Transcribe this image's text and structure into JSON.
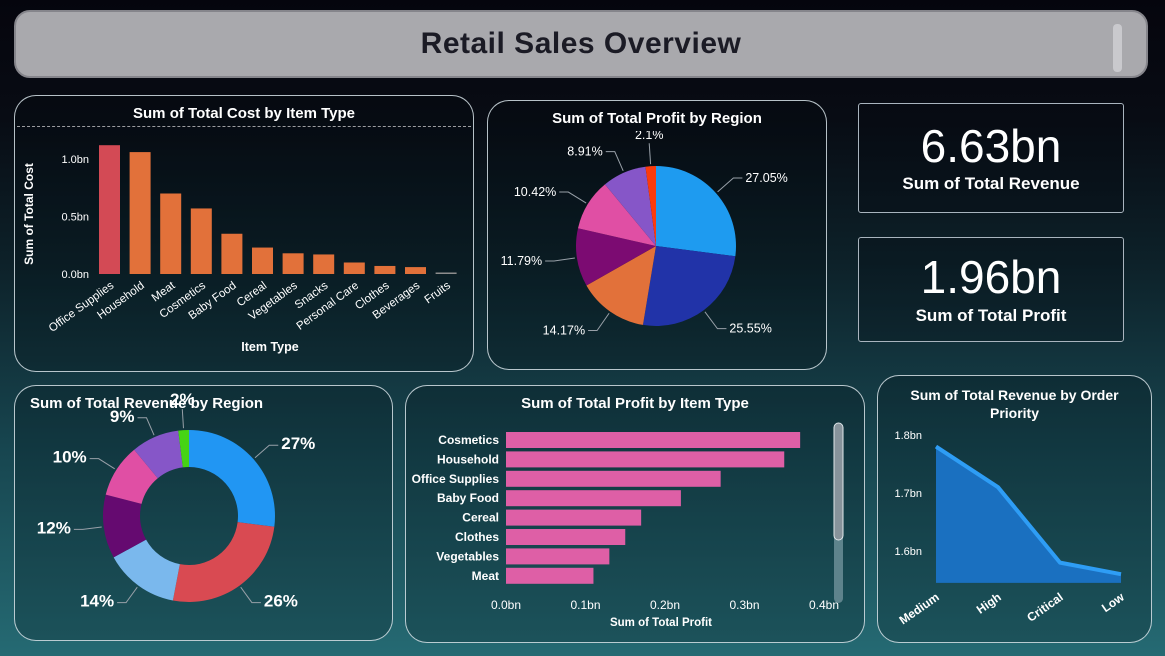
{
  "banner": {
    "title": "Retail Sales Overview"
  },
  "kpis": [
    {
      "value": "6.63bn",
      "label": "Sum of Total Revenue"
    },
    {
      "value": "1.96bn",
      "label": "Sum of Total Profit"
    }
  ],
  "chart_data": [
    {
      "id": "cost-by-item-type",
      "type": "bar",
      "title": "Sum of Total Cost by Item Type",
      "xlabel": "Item Type",
      "ylabel": "Sum of Total Cost",
      "categories": [
        "Office Supplies",
        "Household",
        "Meat",
        "Cosmetics",
        "Baby Food",
        "Cereal",
        "Vegetables",
        "Snacks",
        "Personal Care",
        "Clothes",
        "Beverages",
        "Fruits"
      ],
      "values": [
        1.12,
        1.06,
        0.7,
        0.57,
        0.35,
        0.23,
        0.18,
        0.17,
        0.1,
        0.07,
        0.06,
        0.01
      ],
      "yticks": [
        {
          "label": "1.0bn",
          "v": 1.0
        },
        {
          "label": "0.5bn",
          "v": 0.5
        },
        {
          "label": "0.0bn",
          "v": 0.0
        }
      ],
      "ylim": [
        0,
        1.15
      ],
      "colors": [
        "#d34a55",
        "#e2713a",
        "#e2713a",
        "#e2713a",
        "#e2713a",
        "#e2713a",
        "#e2713a",
        "#e2713a",
        "#e2713a",
        "#e2713a",
        "#e2713a",
        "#8d8d8d"
      ]
    },
    {
      "id": "profit-by-region",
      "type": "pie",
      "title": "Sum of Total Profit by Region",
      "labels": [
        "27.05%",
        "25.55%",
        "14.17%",
        "11.79%",
        "10.42%",
        "8.91%",
        "2.1%"
      ],
      "values": [
        27.05,
        25.55,
        14.17,
        11.79,
        10.42,
        8.91,
        2.1
      ],
      "colors": [
        "#1e9bf0",
        "#2133a8",
        "#e2713a",
        "#7c0b72",
        "#e04fa4",
        "#8656c8",
        "#fb3b0d"
      ]
    },
    {
      "id": "revenue-by-region",
      "type": "donut",
      "title": "Sum of Total Revenue by Region",
      "labels": [
        "27%",
        "26%",
        "14%",
        "12%",
        "10%",
        "9%",
        "2%"
      ],
      "values": [
        27,
        26,
        14,
        12,
        10,
        9,
        2
      ],
      "colors": [
        "#2196f3",
        "#d94a52",
        "#7ab8ed",
        "#650a70",
        "#e04fa4",
        "#8656c8",
        "#46d414"
      ]
    },
    {
      "id": "profit-by-item-type",
      "type": "hbar",
      "title": "Sum of Total Profit by Item Type",
      "xlabel": "Sum of Total Profit",
      "categories": [
        "Cosmetics",
        "Household",
        "Office Supplies",
        "Baby Food",
        "Cereal",
        "Clothes",
        "Vegetables",
        "Meat"
      ],
      "values": [
        0.37,
        0.35,
        0.27,
        0.22,
        0.17,
        0.15,
        0.13,
        0.11
      ],
      "xticks": [
        {
          "label": "0.0bn",
          "v": 0.0
        },
        {
          "label": "0.1bn",
          "v": 0.1
        },
        {
          "label": "0.2bn",
          "v": 0.2
        },
        {
          "label": "0.3bn",
          "v": 0.3
        },
        {
          "label": "0.4bn",
          "v": 0.4
        }
      ],
      "xlim": [
        0,
        0.4
      ],
      "bar_color": "#de5fa6"
    },
    {
      "id": "revenue-by-order-priority",
      "type": "area",
      "title": "Sum of Total Revenue by Order Priority",
      "categories": [
        "Medium",
        "High",
        "Critical",
        "Low"
      ],
      "values": [
        1.78,
        1.71,
        1.58,
        1.56
      ],
      "yticks": [
        {
          "label": "1.8bn",
          "v": 1.8
        },
        {
          "label": "1.7bn",
          "v": 1.7
        },
        {
          "label": "1.6bn",
          "v": 1.6
        }
      ],
      "ylim": [
        1.545,
        1.8
      ],
      "fill_color": "#1a70c0",
      "line_color": "#2e9df5"
    }
  ]
}
